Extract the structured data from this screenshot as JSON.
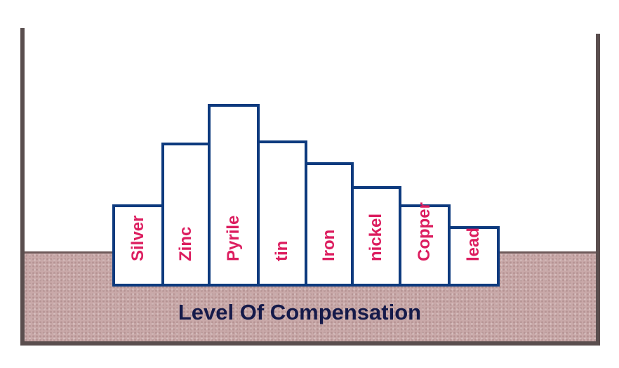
{
  "caption": "Level Of Compensation",
  "colors": {
    "block_border": "#0d3a7e",
    "label": "#dc1d5f",
    "ground": "#c9a9a9",
    "walls": "#5a4e4e",
    "caption": "#151a4a"
  },
  "blocks": [
    {
      "label": "Silver",
      "relative_height": 0.45
    },
    {
      "label": "Zinc",
      "relative_height": 0.79
    },
    {
      "label": "Pyrile",
      "relative_height": 1.0
    },
    {
      "label": "tin",
      "relative_height": 0.8
    },
    {
      "label": "Iron",
      "relative_height": 0.68
    },
    {
      "label": "nickel",
      "relative_height": 0.55
    },
    {
      "label": "Copper",
      "relative_height": 0.45
    },
    {
      "label": "lead",
      "relative_height": 0.33
    }
  ]
}
